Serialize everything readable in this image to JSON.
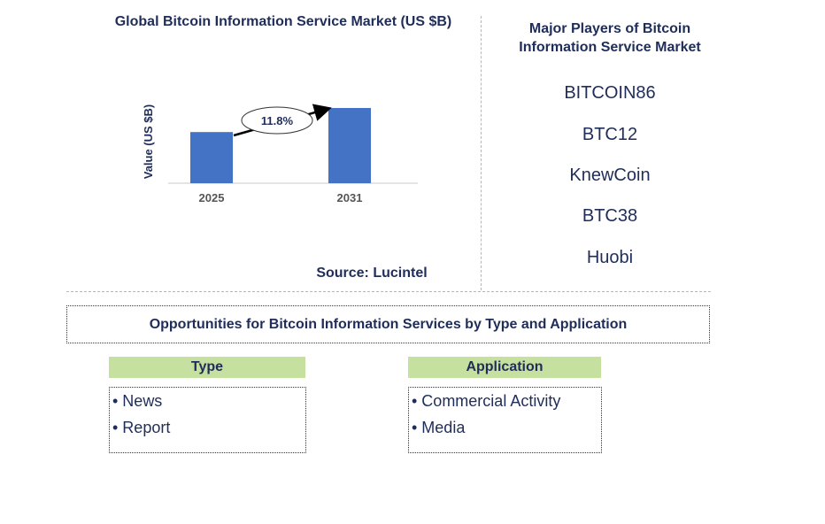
{
  "chart_data": {
    "type": "bar",
    "title": "Global Bitcoin Information Service Market (US $B)",
    "ylabel": "Value (US $B)",
    "categories": [
      "2025",
      "2031"
    ],
    "values": [
      0.68,
      1.0
    ],
    "annotation": "11.8%",
    "bar_color": "#4472c4"
  },
  "source": "Source: Lucintel",
  "players": {
    "title": "Major Players of Bitcoin Information Service Market",
    "items": [
      "BITCOIN86",
      "BTC12",
      "KnewCoin",
      "BTC38",
      "Huobi"
    ]
  },
  "opportunities": {
    "title": "Opportunities for Bitcoin Information Services by Type and Application",
    "type": {
      "header": "Type",
      "items": [
        "• News",
        "• Report"
      ]
    },
    "application": {
      "header": "Application",
      "items": [
        "• Commercial Activity",
        "• Media"
      ]
    }
  },
  "colors": {
    "accent": "#c6e0a0",
    "divider": "#e8b24a",
    "text": "#1f2d5a"
  }
}
